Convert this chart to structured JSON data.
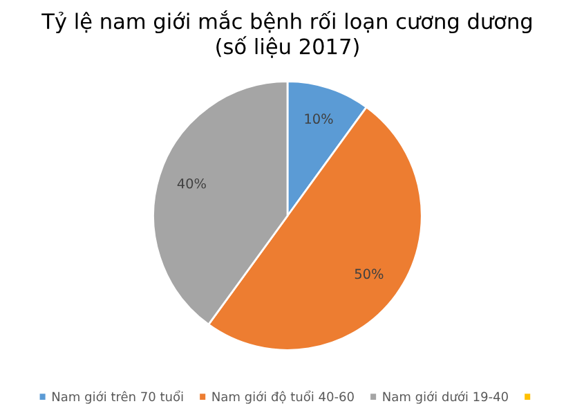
{
  "chart_data": {
    "type": "pie",
    "title": "Tỷ lệ nam giới mắc bệnh rối loạn cương dương\n(số liệu 2017)",
    "categories": [
      "Nam giới trên 70 tuổi",
      "Nam giới độ tuổi 40-60",
      "Nam giới dưới 19-40",
      null
    ],
    "values": [
      10,
      50,
      40,
      0
    ],
    "colors": [
      "#5b9bd5",
      "#ed7d31",
      "#a5a5a5",
      "#ffc000"
    ],
    "value_labels": [
      "10%",
      "50%",
      "40%",
      null
    ],
    "legend": "bottom"
  }
}
